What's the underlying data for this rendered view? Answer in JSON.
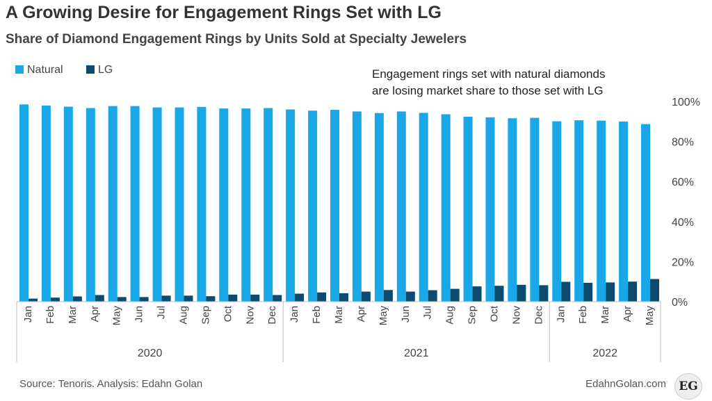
{
  "chart_data": {
    "type": "bar",
    "title": "A Growing Desire for Engagement Rings Set with LG",
    "subtitle": "Share of Diamond  Engagement Rings by Units Sold at Specialty Jewelers",
    "annotation": [
      "Engagement rings set with natural diamonds",
      "are losing market share to those set with LG"
    ],
    "legend": [
      "Natural",
      "LG"
    ],
    "legend_position": "top-left",
    "categories": [
      "Jan",
      "Feb",
      "Mar",
      "Apr",
      "May",
      "Jun",
      "Jul",
      "Aug",
      "Sep",
      "Oct",
      "Nov",
      "Dec",
      "Jan",
      "Feb",
      "Mar",
      "Apr",
      "May",
      "Jun",
      "Jul",
      "Aug",
      "Sep",
      "Oct",
      "Nov",
      "Dec",
      "Jan",
      "Feb",
      "Mar",
      "Apr",
      "May"
    ],
    "groups": [
      {
        "label": "2020",
        "count": 12
      },
      {
        "label": "2021",
        "count": 12
      },
      {
        "label": "2022",
        "count": 5
      }
    ],
    "series": [
      {
        "name": "Natural",
        "color": "#1aa7e8",
        "values": [
          98.5,
          98.0,
          97.4,
          96.7,
          97.7,
          97.7,
          97.0,
          97.0,
          97.3,
          96.5,
          96.5,
          96.7,
          96.0,
          95.4,
          95.8,
          95.0,
          94.2,
          95.0,
          94.3,
          93.6,
          92.4,
          92.1,
          91.6,
          91.8,
          90.1,
          90.6,
          90.4,
          90.0,
          88.7
        ]
      },
      {
        "name": "LG",
        "color": "#0c4a6e",
        "values": [
          1.5,
          2.0,
          2.6,
          3.3,
          2.3,
          2.3,
          3.0,
          3.0,
          2.7,
          3.5,
          3.5,
          3.3,
          4.0,
          4.6,
          4.2,
          5.0,
          5.8,
          5.0,
          5.7,
          6.4,
          7.6,
          7.9,
          8.4,
          8.2,
          9.9,
          9.4,
          9.6,
          10.0,
          11.3
        ]
      }
    ],
    "ylim": [
      0,
      100
    ],
    "yticks": [
      "0%",
      "20%",
      "40%",
      "60%",
      "80%",
      "100%"
    ],
    "grid": false
  },
  "footer": {
    "source": "Source: Tenoris. Analysis: Edahn Golan",
    "site": "EdahnGolan.com",
    "logo_text": "EG"
  }
}
